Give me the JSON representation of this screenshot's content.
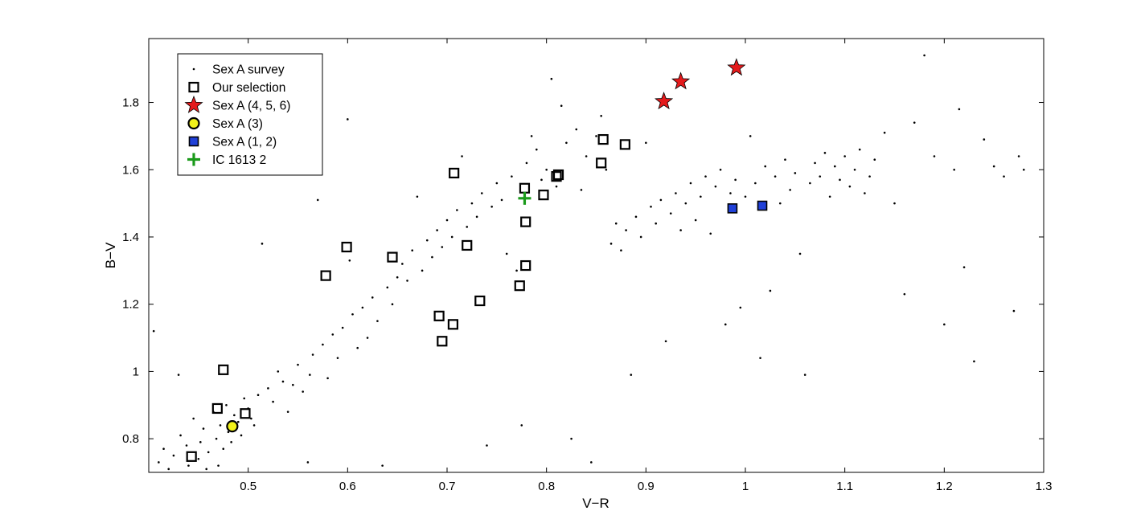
{
  "chart_data": {
    "type": "scatter",
    "title": "",
    "xlabel": "V−R",
    "ylabel": "B−V",
    "xlim": [
      0.4,
      1.3
    ],
    "ylim": [
      0.7,
      1.99
    ],
    "xticks": [
      0.5,
      0.6,
      0.7,
      0.8,
      0.9,
      1.0,
      1.1,
      1.2,
      1.3
    ],
    "xtick_labels": [
      "0.5",
      "0.6",
      "0.7",
      "0.8",
      "0.9",
      "1",
      "1.1",
      "1.2",
      "1.3"
    ],
    "yticks": [
      0.8,
      1.0,
      1.2,
      1.4,
      1.6,
      1.8
    ],
    "ytick_labels": [
      "0.8",
      "1",
      "1.2",
      "1.4",
      "1.6",
      "1.8"
    ],
    "grid": false,
    "legend": {
      "placement": "top-left"
    },
    "colors": {
      "survey": "#000000",
      "selection_edge": "#000000",
      "star": "#e41a1c",
      "circle": "#f2f21a",
      "square": "#2040d8",
      "cross": "#1a9a1a"
    },
    "series": [
      {
        "name": "Sex A survey",
        "marker": "dot",
        "points": [
          [
            0.405,
            1.12
          ],
          [
            0.41,
            0.73
          ],
          [
            0.415,
            0.77
          ],
          [
            0.42,
            0.71
          ],
          [
            0.425,
            0.75
          ],
          [
            0.43,
            0.99
          ],
          [
            0.432,
            0.81
          ],
          [
            0.438,
            0.78
          ],
          [
            0.44,
            0.72
          ],
          [
            0.445,
            0.86
          ],
          [
            0.45,
            0.74
          ],
          [
            0.452,
            0.79
          ],
          [
            0.455,
            0.83
          ],
          [
            0.458,
            0.71
          ],
          [
            0.46,
            0.76
          ],
          [
            0.465,
            0.88
          ],
          [
            0.468,
            0.8
          ],
          [
            0.47,
            0.72
          ],
          [
            0.472,
            0.84
          ],
          [
            0.475,
            0.77
          ],
          [
            0.478,
            0.9
          ],
          [
            0.48,
            0.82
          ],
          [
            0.483,
            0.79
          ],
          [
            0.486,
            0.87
          ],
          [
            0.49,
            0.85
          ],
          [
            0.493,
            0.81
          ],
          [
            0.496,
            0.92
          ],
          [
            0.5,
            0.89
          ],
          [
            0.503,
            0.86
          ],
          [
            0.506,
            0.84
          ],
          [
            0.51,
            0.93
          ],
          [
            0.514,
            1.38
          ],
          [
            0.52,
            0.95
          ],
          [
            0.525,
            0.91
          ],
          [
            0.53,
            1.0
          ],
          [
            0.535,
            0.97
          ],
          [
            0.54,
            0.88
          ],
          [
            0.545,
            0.96
          ],
          [
            0.55,
            1.02
          ],
          [
            0.555,
            0.94
          ],
          [
            0.56,
            0.73
          ],
          [
            0.562,
            0.99
          ],
          [
            0.565,
            1.05
          ],
          [
            0.57,
            1.51
          ],
          [
            0.575,
            1.08
          ],
          [
            0.58,
            0.98
          ],
          [
            0.585,
            1.11
          ],
          [
            0.59,
            1.04
          ],
          [
            0.595,
            1.13
          ],
          [
            0.6,
            1.75
          ],
          [
            0.602,
            1.33
          ],
          [
            0.605,
            1.17
          ],
          [
            0.61,
            1.07
          ],
          [
            0.615,
            1.19
          ],
          [
            0.62,
            1.1
          ],
          [
            0.625,
            1.22
          ],
          [
            0.63,
            1.15
          ],
          [
            0.635,
            0.72
          ],
          [
            0.64,
            1.25
          ],
          [
            0.645,
            1.2
          ],
          [
            0.65,
            1.28
          ],
          [
            0.655,
            1.32
          ],
          [
            0.66,
            1.27
          ],
          [
            0.665,
            1.36
          ],
          [
            0.67,
            1.52
          ],
          [
            0.675,
            1.3
          ],
          [
            0.68,
            1.39
          ],
          [
            0.685,
            1.34
          ],
          [
            0.69,
            1.42
          ],
          [
            0.695,
            1.37
          ],
          [
            0.7,
            1.45
          ],
          [
            0.705,
            1.4
          ],
          [
            0.71,
            1.48
          ],
          [
            0.715,
            1.64
          ],
          [
            0.72,
            1.43
          ],
          [
            0.725,
            1.5
          ],
          [
            0.73,
            1.46
          ],
          [
            0.735,
            1.53
          ],
          [
            0.74,
            0.78
          ],
          [
            0.745,
            1.49
          ],
          [
            0.75,
            1.56
          ],
          [
            0.755,
            1.51
          ],
          [
            0.76,
            1.35
          ],
          [
            0.765,
            1.58
          ],
          [
            0.77,
            1.3
          ],
          [
            0.775,
            0.84
          ],
          [
            0.78,
            1.62
          ],
          [
            0.785,
            1.7
          ],
          [
            0.79,
            1.66
          ],
          [
            0.795,
            1.57
          ],
          [
            0.8,
            1.6
          ],
          [
            0.805,
            1.87
          ],
          [
            0.81,
            1.55
          ],
          [
            0.815,
            1.79
          ],
          [
            0.82,
            1.68
          ],
          [
            0.825,
            0.8
          ],
          [
            0.83,
            1.72
          ],
          [
            0.835,
            1.54
          ],
          [
            0.84,
            1.64
          ],
          [
            0.845,
            0.73
          ],
          [
            0.85,
            1.7
          ],
          [
            0.855,
            1.76
          ],
          [
            0.86,
            1.6
          ],
          [
            0.865,
            1.38
          ],
          [
            0.87,
            1.44
          ],
          [
            0.875,
            1.36
          ],
          [
            0.88,
            1.42
          ],
          [
            0.885,
            0.99
          ],
          [
            0.89,
            1.46
          ],
          [
            0.895,
            1.4
          ],
          [
            0.9,
            1.68
          ],
          [
            0.905,
            1.49
          ],
          [
            0.91,
            1.44
          ],
          [
            0.915,
            1.51
          ],
          [
            0.92,
            1.09
          ],
          [
            0.925,
            1.47
          ],
          [
            0.93,
            1.53
          ],
          [
            0.935,
            1.42
          ],
          [
            0.94,
            1.5
          ],
          [
            0.945,
            1.56
          ],
          [
            0.95,
            1.45
          ],
          [
            0.955,
            1.52
          ],
          [
            0.96,
            1.58
          ],
          [
            0.965,
            1.41
          ],
          [
            0.97,
            1.55
          ],
          [
            0.975,
            1.6
          ],
          [
            0.98,
            1.14
          ],
          [
            0.985,
            1.53
          ],
          [
            0.99,
            1.57
          ],
          [
            0.995,
            1.19
          ],
          [
            1.0,
            1.52
          ],
          [
            1.005,
            1.7
          ],
          [
            1.01,
            1.56
          ],
          [
            1.015,
            1.04
          ],
          [
            1.02,
            1.61
          ],
          [
            1.025,
            1.24
          ],
          [
            1.03,
            1.58
          ],
          [
            1.035,
            1.5
          ],
          [
            1.04,
            1.63
          ],
          [
            1.045,
            1.54
          ],
          [
            1.05,
            1.59
          ],
          [
            1.055,
            1.35
          ],
          [
            1.06,
            0.99
          ],
          [
            1.065,
            1.56
          ],
          [
            1.07,
            1.62
          ],
          [
            1.075,
            1.58
          ],
          [
            1.08,
            1.65
          ],
          [
            1.085,
            1.52
          ],
          [
            1.09,
            1.61
          ],
          [
            1.095,
            1.57
          ],
          [
            1.1,
            1.64
          ],
          [
            1.105,
            1.55
          ],
          [
            1.11,
            1.6
          ],
          [
            1.115,
            1.66
          ],
          [
            1.12,
            1.53
          ],
          [
            1.125,
            1.58
          ],
          [
            1.13,
            1.63
          ],
          [
            1.14,
            1.71
          ],
          [
            1.15,
            1.5
          ],
          [
            1.16,
            1.23
          ],
          [
            1.17,
            1.74
          ],
          [
            1.18,
            1.94
          ],
          [
            1.19,
            1.64
          ],
          [
            1.2,
            1.14
          ],
          [
            1.21,
            1.6
          ],
          [
            1.215,
            1.78
          ],
          [
            1.22,
            1.31
          ],
          [
            1.23,
            1.03
          ],
          [
            1.24,
            1.69
          ],
          [
            1.25,
            1.61
          ],
          [
            1.26,
            1.58
          ],
          [
            1.27,
            1.18
          ],
          [
            1.275,
            1.64
          ],
          [
            1.28,
            1.6
          ]
        ]
      },
      {
        "name": "Our selection",
        "marker": "open-square",
        "points": [
          [
            0.443,
            0.747
          ],
          [
            0.469,
            0.89
          ],
          [
            0.475,
            1.005
          ],
          [
            0.497,
            0.875
          ],
          [
            0.578,
            1.285
          ],
          [
            0.599,
            1.37
          ],
          [
            0.645,
            1.34
          ],
          [
            0.692,
            1.165
          ],
          [
            0.695,
            1.09
          ],
          [
            0.706,
            1.14
          ],
          [
            0.707,
            1.59
          ],
          [
            0.72,
            1.375
          ],
          [
            0.733,
            1.21
          ],
          [
            0.773,
            1.255
          ],
          [
            0.778,
            1.545
          ],
          [
            0.779,
            1.445
          ],
          [
            0.779,
            1.315
          ],
          [
            0.797,
            1.525
          ],
          [
            0.81,
            1.58
          ],
          [
            0.812,
            1.585
          ],
          [
            0.855,
            1.62
          ],
          [
            0.857,
            1.69
          ],
          [
            0.879,
            1.675
          ]
        ]
      },
      {
        "name": "Sex A (4, 5, 6)",
        "marker": "star",
        "points": [
          [
            0.918,
            1.803
          ],
          [
            0.935,
            1.862
          ],
          [
            0.991,
            1.903
          ]
        ]
      },
      {
        "name": "Sex A (3)",
        "marker": "circle",
        "points": [
          [
            0.484,
            0.837
          ]
        ]
      },
      {
        "name": "Sex A (1, 2)",
        "marker": "filled-square",
        "points": [
          [
            0.987,
            1.485
          ],
          [
            1.017,
            1.493
          ]
        ]
      },
      {
        "name": "IC 1613 2",
        "marker": "cross",
        "points": [
          [
            0.778,
            1.515
          ]
        ]
      }
    ]
  }
}
